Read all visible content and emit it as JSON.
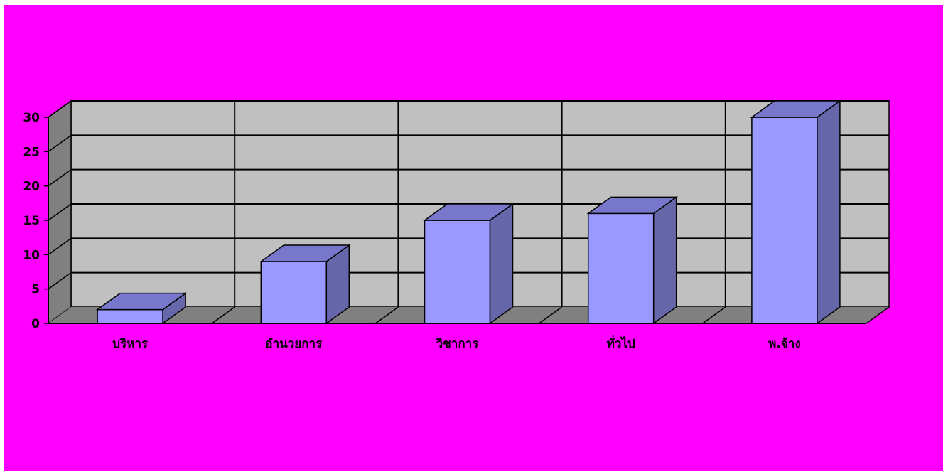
{
  "chart_data": {
    "type": "bar",
    "subtype": "3d-column",
    "title": "",
    "xlabel": "",
    "ylabel": "",
    "categories": [
      "บริหาร",
      "อำนวยการ",
      "วิชาการ",
      "ทั่วไป",
      "พ.จ้าง"
    ],
    "values": [
      2,
      9,
      15,
      16,
      30
    ],
    "ylim": [
      0,
      30
    ],
    "yticks": [
      "0",
      "5",
      "10",
      "15",
      "20",
      "25",
      "30"
    ],
    "grid": true,
    "legend": "none"
  },
  "colors": {
    "background": "#ff00ff",
    "wall": "#c0c0c0",
    "floor": "#808080",
    "side_wall": "#808080",
    "bar_front": "#9999ff",
    "bar_top": "#7777cc",
    "bar_side": "#6666aa"
  }
}
